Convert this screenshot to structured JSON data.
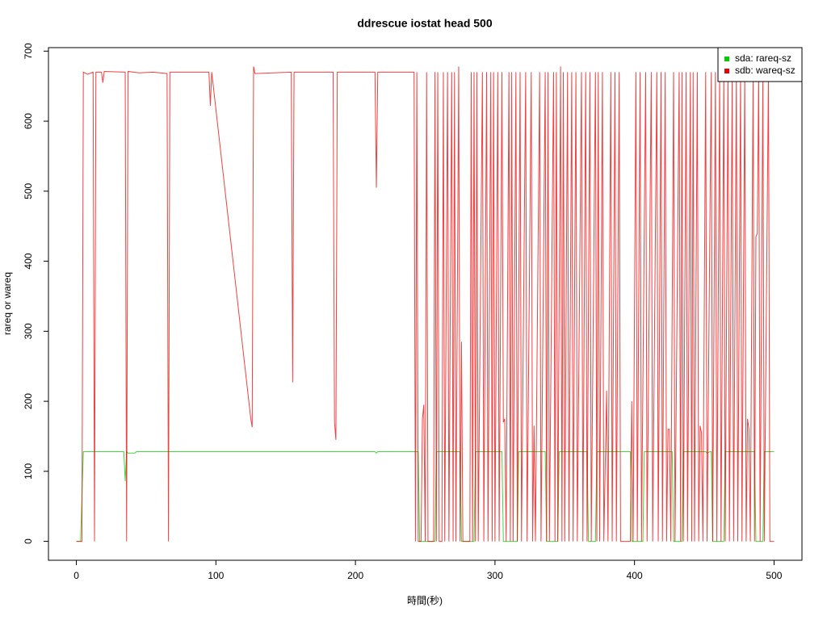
{
  "chart_data": {
    "type": "line",
    "title": "ddrescue iostat head 500",
    "xlabel": "時間(秒)",
    "ylabel": "rareq or wareq",
    "xlim": [
      -20,
      520
    ],
    "ylim": [
      -27,
      705
    ],
    "xticks": [
      0,
      100,
      200,
      300,
      400,
      500
    ],
    "yticks": [
      0,
      100,
      200,
      300,
      400,
      500,
      600,
      700
    ],
    "legend": "upper right",
    "series": [
      {
        "name": "sda: rareq-sz",
        "color": "#00cd00",
        "x": [
          0,
          3,
          5,
          34,
          35,
          36,
          37,
          42,
          43,
          214,
          215,
          216,
          245,
          246,
          257,
          258,
          275,
          276,
          285,
          286,
          305,
          306,
          316,
          317,
          336,
          337,
          345,
          346,
          366,
          367,
          372,
          373,
          397,
          398,
          406,
          407,
          427,
          428,
          434,
          435,
          451,
          452,
          454,
          455,
          456,
          464,
          465,
          486,
          487,
          492,
          493,
          500
        ],
        "values": [
          0,
          0,
          128,
          128,
          86,
          128,
          126,
          126,
          128,
          128,
          126,
          128,
          128,
          0,
          0,
          128,
          128,
          0,
          0,
          128,
          128,
          0,
          0,
          128,
          128,
          0,
          0,
          128,
          128,
          0,
          0,
          128,
          128,
          0,
          0,
          128,
          128,
          0,
          0,
          128,
          128,
          126,
          128,
          128,
          0,
          0,
          128,
          128,
          0,
          0,
          128,
          128
        ]
      },
      {
        "name": "sdb: wareq-sz",
        "color": "#ee0000",
        "x": [
          0,
          4,
          5,
          8,
          12,
          13,
          14,
          18,
          19,
          20,
          35,
          36,
          37,
          45,
          55,
          65,
          66,
          67,
          95,
          96,
          97,
          125,
          126,
          127,
          128,
          154,
          155,
          156,
          184,
          185,
          186,
          187,
          214,
          215,
          216,
          242,
          243,
          244,
          245,
          247,
          248,
          249,
          250,
          251,
          252,
          256,
          257,
          258,
          259,
          260,
          262,
          263,
          264,
          266,
          267,
          269,
          270,
          271,
          272,
          274,
          275,
          276,
          277,
          282,
          283,
          284,
          285,
          286,
          287,
          288,
          291,
          292,
          294,
          295,
          297,
          298,
          299,
          300,
          302,
          303,
          305,
          306,
          307,
          308,
          310,
          311,
          312,
          313,
          315,
          316,
          318,
          319,
          322,
          323,
          326,
          327,
          328,
          329,
          332,
          333,
          336,
          337,
          338,
          339,
          342,
          343,
          344,
          345,
          347,
          348,
          349,
          350,
          352,
          353,
          355,
          356,
          358,
          359,
          362,
          363,
          365,
          366,
          368,
          369,
          372,
          373,
          374,
          375,
          377,
          378,
          380,
          381,
          383,
          384,
          386,
          387,
          389,
          390,
          397,
          398,
          399,
          401,
          402,
          404,
          405,
          408,
          409,
          412,
          413,
          416,
          417,
          419,
          420,
          422,
          423,
          424,
          425,
          426,
          428,
          429,
          432,
          433,
          434,
          435,
          437,
          438,
          440,
          441,
          442,
          443,
          445,
          446,
          447,
          448,
          449,
          451,
          452,
          455,
          456,
          458,
          459,
          461,
          462,
          464,
          465,
          467,
          468,
          470,
          471,
          473,
          474,
          476,
          477,
          479,
          480,
          481,
          482,
          483,
          485,
          486,
          487,
          488,
          489,
          490,
          492,
          493,
          496,
          497,
          500
        ],
        "values": [
          0,
          0,
          670,
          667,
          670,
          0,
          670,
          670,
          655,
          671,
          670,
          0,
          671,
          669,
          670,
          668,
          0,
          670,
          670,
          622,
          670,
          175,
          163,
          678,
          668,
          670,
          227,
          670,
          670,
          170,
          145,
          670,
          670,
          505,
          670,
          670,
          0,
          670,
          0,
          0,
          175,
          195,
          0,
          670,
          0,
          0,
          670,
          0,
          670,
          0,
          0,
          670,
          0,
          670,
          0,
          670,
          0,
          670,
          0,
          678,
          0,
          285,
          0,
          0,
          670,
          0,
          670,
          0,
          670,
          0,
          670,
          0,
          670,
          0,
          670,
          0,
          670,
          0,
          670,
          0,
          670,
          170,
          175,
          0,
          670,
          0,
          670,
          0,
          670,
          0,
          670,
          0,
          670,
          0,
          670,
          0,
          165,
          0,
          670,
          0,
          670,
          0,
          670,
          0,
          670,
          0,
          670,
          0,
          678,
          0,
          670,
          0,
          670,
          0,
          670,
          0,
          670,
          0,
          670,
          0,
          670,
          0,
          670,
          0,
          670,
          0,
          670,
          0,
          670,
          0,
          215,
          0,
          670,
          0,
          670,
          0,
          670,
          0,
          0,
          200,
          0,
          670,
          0,
          670,
          0,
          670,
          0,
          670,
          0,
          670,
          0,
          670,
          0,
          670,
          0,
          160,
          160,
          0,
          670,
          0,
          670,
          0,
          670,
          0,
          670,
          0,
          670,
          0,
          670,
          0,
          670,
          0,
          165,
          155,
          0,
          670,
          0,
          670,
          0,
          670,
          0,
          670,
          0,
          670,
          0,
          670,
          0,
          670,
          0,
          670,
          0,
          670,
          0,
          670,
          0,
          175,
          160,
          0,
          670,
          0,
          435,
          440,
          670,
          0,
          670,
          0,
          670,
          0,
          0
        ]
      }
    ]
  }
}
